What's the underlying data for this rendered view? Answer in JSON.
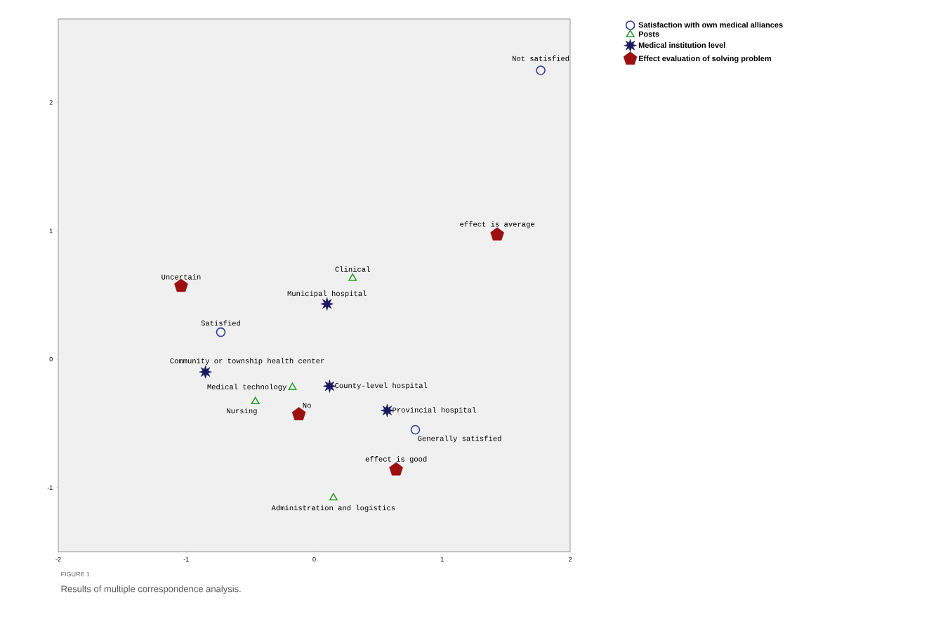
{
  "chart_data": {
    "type": "scatter",
    "series": [
      {
        "name": "Satisfaction with own medical alliances",
        "color": "#2e3f99",
        "marker": "circle",
        "x": [
          1.77,
          -0.73,
          0.79
        ],
        "values": [
          2.25,
          0.21,
          -0.55
        ]
      },
      {
        "name": "Posts",
        "color": "#2ca02c",
        "marker": "triangle",
        "x": [
          0.3,
          -0.17,
          -0.46,
          0.15
        ],
        "values": [
          0.63,
          -0.22,
          -0.33,
          -1.08
        ]
      },
      {
        "name": "Medical institution level",
        "color": "#1a1a5e",
        "marker": "star",
        "x": [
          0.1,
          -0.85,
          0.12,
          0.57
        ],
        "values": [
          0.43,
          -0.1,
          -0.21,
          -0.4
        ]
      },
      {
        "name": "Effect evaluation of  solving problem",
        "color": "#9b1010",
        "x": [
          1.43,
          -1.04,
          -0.12,
          0.64
        ],
        "values": [
          0.97,
          0.57,
          -0.43,
          -0.86
        ]
      }
    ],
    "annotations": [
      {
        "text": "Not satisfied",
        "x": 1.77,
        "y": 2.25
      },
      {
        "text": "Satisfied",
        "x": -0.73,
        "y": 0.21
      },
      {
        "text": "Generally satisfied",
        "x": 0.79,
        "y": -0.55
      },
      {
        "text": "Clinical",
        "x": 0.3,
        "y": 0.63
      },
      {
        "text": "Medical technology",
        "x": -0.17,
        "y": -0.22
      },
      {
        "text": "Nursing",
        "x": -0.46,
        "y": -0.33
      },
      {
        "text": "Administration and logistics",
        "x": 0.15,
        "y": -1.08
      },
      {
        "text": "Municipal hospital",
        "x": 0.1,
        "y": 0.43
      },
      {
        "text": "Community or township health center",
        "x": -0.85,
        "y": -0.1
      },
      {
        "text": "County-level hospital",
        "x": 0.12,
        "y": -0.21
      },
      {
        "text": "Provincial hospital",
        "x": 0.57,
        "y": -0.4
      },
      {
        "text": "effect is average",
        "x": 1.43,
        "y": 0.97
      },
      {
        "text": "Uncertain",
        "x": -1.04,
        "y": 0.57
      },
      {
        "text": "No",
        "x": -0.12,
        "y": -0.43
      },
      {
        "text": "effect is good",
        "x": 0.64,
        "y": -0.86
      },
      "FIGURE 1",
      "Results of multiple correspondence analysis."
    ],
    "xlim": [
      -2,
      2
    ],
    "ylim": [
      -1.5,
      2.65
    ],
    "xticks": [
      -2,
      -1,
      0,
      1,
      2
    ],
    "yticks": [
      -1,
      0,
      1,
      2
    ],
    "grid": false,
    "legend": "top right"
  }
}
